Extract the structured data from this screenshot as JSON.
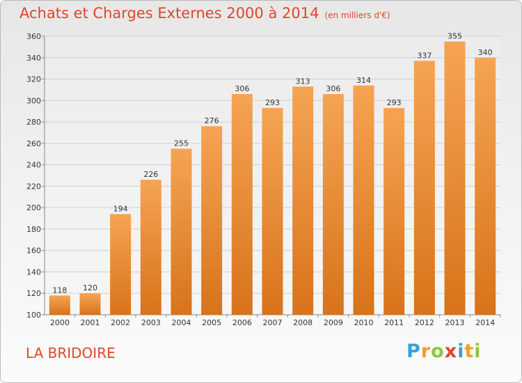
{
  "title": "Achats et Charges Externes 2000 à 2014",
  "subtitle": "(en milliers d'€)",
  "place": "LA BRIDOIRE",
  "logo": {
    "text": "Proxiti",
    "letters": [
      {
        "ch": "P",
        "color": "#3aa0d8"
      },
      {
        "ch": "r",
        "color": "#f0a020"
      },
      {
        "ch": "o",
        "color": "#8dc63f"
      },
      {
        "ch": "x",
        "color": "#e0462a"
      },
      {
        "ch": "i",
        "color": "#3aa0d8"
      },
      {
        "ch": "t",
        "color": "#f0a020"
      },
      {
        "ch": "i",
        "color": "#8dc63f"
      }
    ]
  },
  "colors": {
    "bar_top": "#f5a453",
    "bar_bottom": "#d8731a",
    "title": "#e0462a",
    "grid": "#d0d0d0"
  },
  "chart_data": {
    "type": "bar",
    "categories": [
      "2000",
      "2001",
      "2002",
      "2003",
      "2004",
      "2005",
      "2006",
      "2007",
      "2008",
      "2009",
      "2010",
      "2011",
      "2012",
      "2013",
      "2014"
    ],
    "values": [
      118,
      120,
      194,
      226,
      255,
      276,
      306,
      293,
      313,
      306,
      314,
      293,
      337,
      355,
      340
    ],
    "title": "Achats et Charges Externes 2000 à 2014",
    "subtitle": "(en milliers d'€)",
    "ylim": [
      100,
      360
    ],
    "yticks": [
      100,
      120,
      140,
      160,
      180,
      200,
      220,
      240,
      260,
      280,
      300,
      320,
      340,
      360
    ],
    "grid": true,
    "data_labels": true
  }
}
